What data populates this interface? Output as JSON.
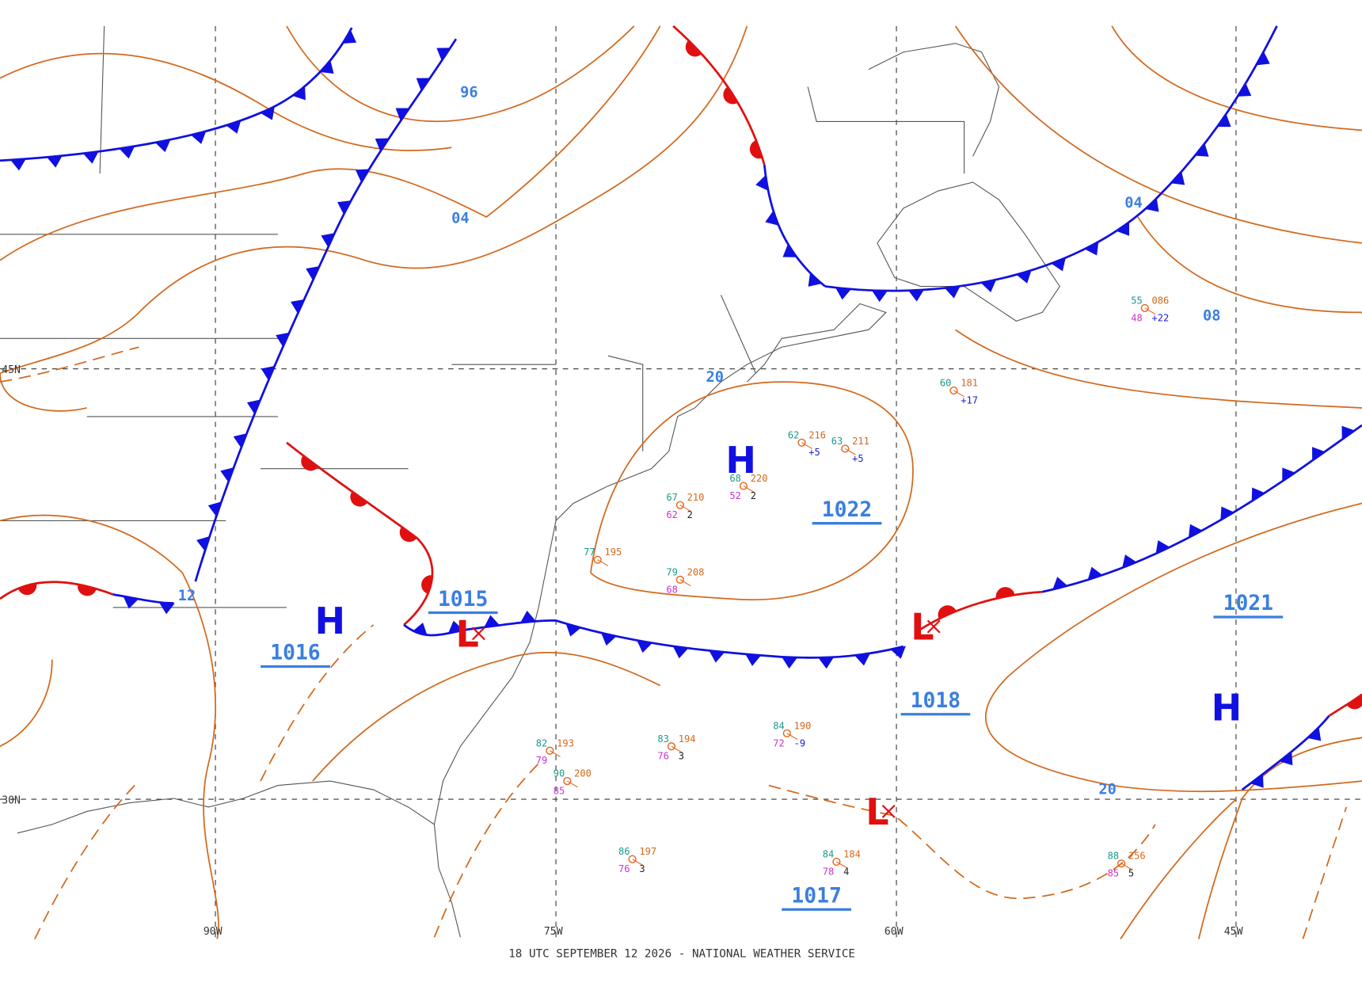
{
  "map": {
    "footer": "18 UTC SEPTEMBER 12 2026 - NATIONAL WEATHER SERVICE",
    "grid_labels": [
      "45N",
      "30N",
      "90W",
      "75W",
      "60W",
      "45W"
    ],
    "centers": [
      {
        "symbol": "H",
        "pressure": "1022"
      },
      {
        "symbol": "H",
        "pressure": "1016"
      },
      {
        "symbol": "L",
        "pressure": "1015"
      },
      {
        "symbol": "L",
        "pressure": "1018"
      },
      {
        "symbol": "L",
        "pressure": "1017"
      },
      {
        "symbol": "H",
        "pressure": "1021"
      }
    ],
    "isobar_labels": [
      "96",
      "04",
      "04",
      "08",
      "12",
      "20",
      "20"
    ],
    "stations": [
      {
        "temp": "68",
        "pressure": "220",
        "dew": "52",
        "tendency": "2"
      },
      {
        "temp": "67",
        "pressure": "210",
        "dew": "62",
        "tendency": "2"
      },
      {
        "temp": "79",
        "pressure": "208",
        "dew": "68"
      },
      {
        "temp": "77",
        "pressure": "195"
      },
      {
        "temp": "82",
        "pressure": "193",
        "dew": "79"
      },
      {
        "temp": "83",
        "pressure": "194",
        "dew": "76",
        "tendency": "3"
      },
      {
        "temp": "84",
        "pressure": "190",
        "dew": "72",
        "tendency": "-9"
      },
      {
        "temp": "86",
        "pressure": "197",
        "dew": "76",
        "tendency": "3"
      },
      {
        "temp": "84",
        "pressure": "184",
        "dew": "78",
        "tendency": "4"
      },
      {
        "temp": "88",
        "pressure": "256",
        "dew": "85",
        "tendency": "5"
      },
      {
        "temp": "60",
        "pressure": "181",
        "tendency": "+17"
      },
      {
        "temp": "55",
        "pressure": "086",
        "dew": "48",
        "tendency": "+22"
      },
      {
        "temp": "63",
        "pressure": "211",
        "tendency": "+5"
      },
      {
        "temp": "62",
        "pressure": "216",
        "tendency": "+5"
      },
      {
        "temp": "90",
        "pressure": "200",
        "dew": "85"
      }
    ]
  }
}
